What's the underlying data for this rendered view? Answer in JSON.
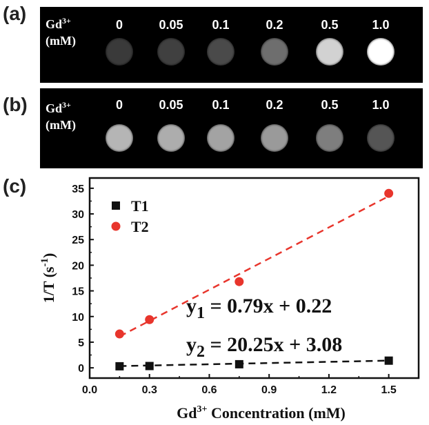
{
  "panels": {
    "a": {
      "letter": "(a)",
      "label_main": "Gd",
      "label_sup": "3+",
      "label_unit": "(mM)",
      "concentrations": [
        "0",
        "0.05",
        "0.1",
        "0.2",
        "0.5",
        "1.0"
      ],
      "well_colors": [
        "#3a3a3a",
        "#404040",
        "#4a4a4a",
        "#6e6e6e",
        "#d2d2d2",
        "#ffffff"
      ]
    },
    "b": {
      "letter": "(b)",
      "label_main": "Gd",
      "label_sup": "3+",
      "label_unit": "(mM)",
      "concentrations": [
        "0",
        "0.05",
        "0.1",
        "0.2",
        "0.5",
        "1.0"
      ],
      "well_colors": [
        "#b5b5b5",
        "#adadad",
        "#a3a3a3",
        "#9a9a9a",
        "#7e7e7e",
        "#555555"
      ]
    },
    "c": {
      "letter": "(c)"
    }
  },
  "chart_data": {
    "type": "scatter",
    "xlabel_main": "Gd",
    "xlabel_sup": "3+",
    "xlabel_rest": " Concentration (mM)",
    "ylabel_main": "1/T (s",
    "ylabel_sup": "-1",
    "ylabel_end": ")",
    "xlim": [
      0.0,
      1.65
    ],
    "ylim": [
      -2,
      37
    ],
    "xticks": [
      "0.0",
      "0.3",
      "0.6",
      "0.9",
      "1.2",
      "1.5"
    ],
    "yticks": [
      "0",
      "5",
      "10",
      "15",
      "20",
      "25",
      "30",
      "35"
    ],
    "series": [
      {
        "name": "T1",
        "color": "#111111",
        "marker": "square",
        "x": [
          0.15,
          0.3,
          0.75,
          1.5
        ],
        "y": [
          0.3,
          0.35,
          0.7,
          1.4
        ],
        "fit": {
          "slope": 0.79,
          "intercept": 0.22
        }
      },
      {
        "name": "T2",
        "color": "#e8352c",
        "marker": "circle",
        "x": [
          0.15,
          0.3,
          0.75,
          1.5
        ],
        "y": [
          6.6,
          9.4,
          16.8,
          34.0
        ],
        "fit": {
          "slope": 20.25,
          "intercept": 3.08
        }
      }
    ],
    "equations": [
      {
        "lhs": "y",
        "sub": "1",
        "rhs": " = 0.79x + 0.22"
      },
      {
        "lhs": "y",
        "sub": "2",
        "rhs": " = 20.25x + 3.08"
      }
    ]
  }
}
